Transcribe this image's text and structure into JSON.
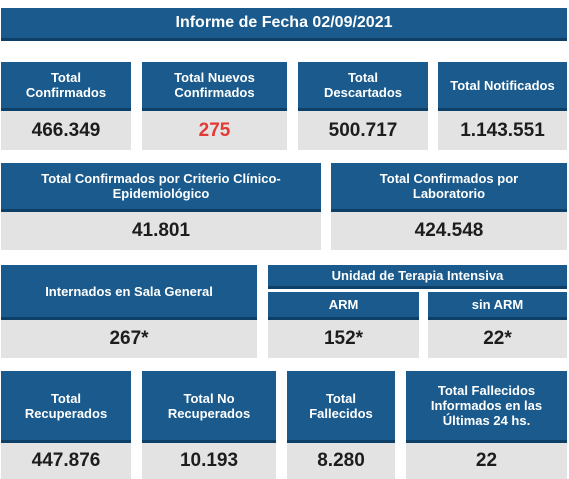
{
  "title": "Informe de Fecha 02/09/2021",
  "row1": [
    {
      "label": "Total\nConfirmados",
      "value": "466.349"
    },
    {
      "label": "Total Nuevos\nConfirmados",
      "value": "275"
    },
    {
      "label": "Total\nDescartados",
      "value": "500.717"
    },
    {
      "label": "Total Notificados",
      "value": "1.143.551"
    }
  ],
  "row2": [
    {
      "label": "Total Confirmados por Criterio Clínico-\nEpidemiológico",
      "value": "41.801"
    },
    {
      "label": "Total Confirmados por\nLaboratorio",
      "value": "424.548"
    }
  ],
  "row3": {
    "internados": {
      "label": "Internados en Sala General",
      "value": "267*"
    },
    "uti": {
      "label": "Unidad de Terapia Intensiva",
      "arm": {
        "label": "ARM",
        "value": "152*"
      },
      "sin_arm": {
        "label": "sin ARM",
        "value": "22*"
      }
    }
  },
  "row4": [
    {
      "label": "Total\nRecuperados",
      "value": "447.876"
    },
    {
      "label": "Total No\nRecuperados",
      "value": "10.193"
    },
    {
      "label": "Total\nFallecidos",
      "value": "8.280"
    },
    {
      "label": "Total Fallecidos\nInformados en las\nÚltimas 24 hs.",
      "value": "22"
    }
  ],
  "colors": {
    "header_bg": "#1a5a8c",
    "value_bg": "#e3e3e3",
    "highlight": "#e53935"
  }
}
